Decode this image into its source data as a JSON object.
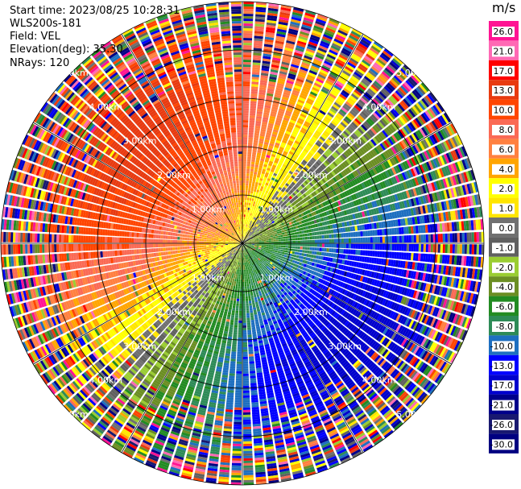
{
  "info": {
    "start_time": "Start time: 2023/08/25 10:28:31",
    "station": "WLS200s-181",
    "field": "Field: VEL",
    "elevation": "Elevation(deg): 35.30",
    "nrays": "NRays: 120"
  },
  "chart_data": {
    "type": "ppi",
    "ring_labels": [
      "1.00km",
      "2.00km",
      "3.00km",
      "4.00km",
      "5.00km"
    ],
    "max_range_km": 5.0,
    "n_rays": 120,
    "colorbar": {
      "unit": "m/s",
      "ticks": [
        "26.0",
        "21.0",
        "17.0",
        "13.0",
        "10.0",
        "8.0",
        "6.0",
        "4.0",
        "2.0",
        "1.0",
        "0.0",
        "-1.0",
        "-2.0",
        "-4.0",
        "-6.0",
        "-8.0",
        "-10.0",
        "-13.0",
        "-17.0",
        "-21.0",
        "-26.0",
        "-30.0"
      ],
      "colors": [
        "#ff1493",
        "#ff69b4",
        "#ff0000",
        "#e83a10",
        "#ff4500",
        "#fa6a55",
        "#ff8040",
        "#ffa500",
        "#ffff00",
        "#ffe500",
        "#707070",
        "#606060",
        "#9acd32",
        "#6b8e23",
        "#228b22",
        "#2e8b57",
        "#1e6fc0",
        "#0000ff",
        "#0000cd",
        "#00008b",
        "#191970",
        "#000080"
      ]
    }
  }
}
